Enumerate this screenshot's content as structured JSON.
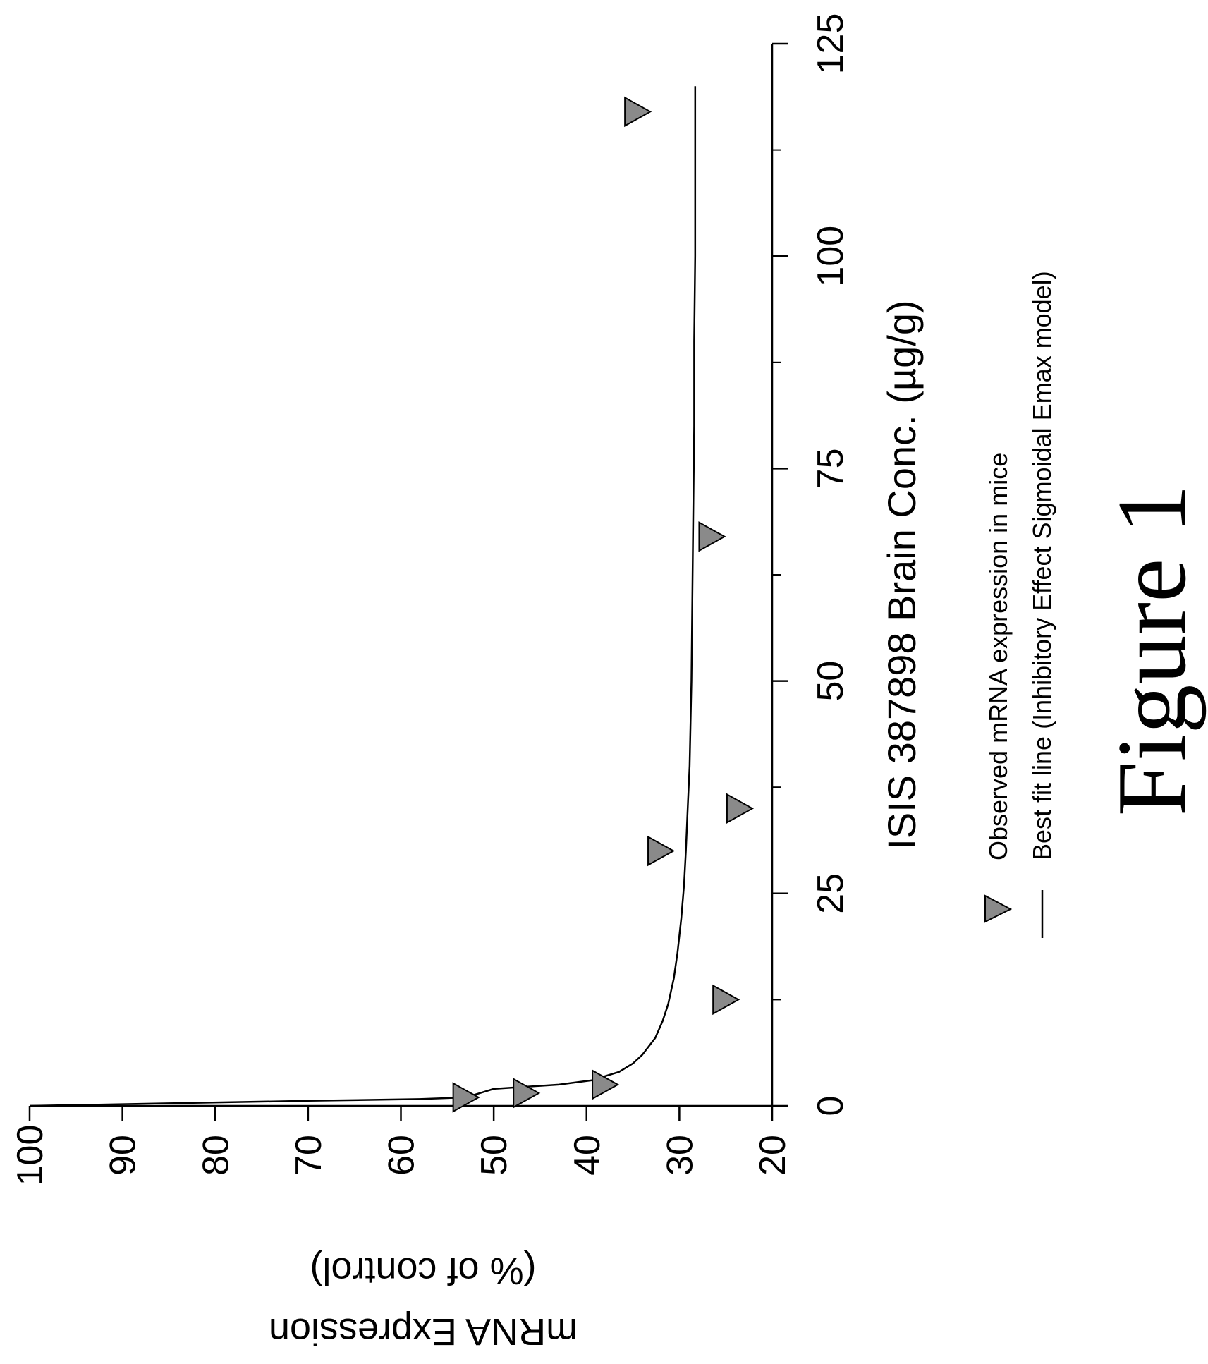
{
  "chart_data": {
    "type": "scatter",
    "orientation": "rotated 90 degrees counter-clockwise",
    "title": "ISIS 387898  Brain Conc. (µg/g)",
    "xlabel": "ISIS 387898  Brain Conc. (µg/g)",
    "ylabel": [
      "mRNA Expression",
      "(% of control)"
    ],
    "xlim": [
      0,
      125
    ],
    "ylim": [
      20,
      100
    ],
    "x_ticks": [
      0,
      25,
      50,
      75,
      100,
      125
    ],
    "x_tick_labels": [
      "0",
      "25",
      "50",
      "75",
      "100",
      "125"
    ],
    "y_ticks": [
      20,
      30,
      40,
      50,
      60,
      70,
      80,
      90,
      100
    ],
    "y_tick_labels": [
      "20",
      "30",
      "40",
      "50",
      "60",
      "70",
      "80",
      "90",
      "100"
    ],
    "grid": false,
    "legend_position": "bottom-right",
    "series": [
      {
        "name": "Observed  mRNA expression in mice",
        "kind": "scatter",
        "marker": "triangle",
        "color": "#8a8a8a",
        "x": [
          1.0,
          1.5,
          2.5,
          12.5,
          30,
          35,
          67,
          117
        ],
        "y": [
          53,
          46.5,
          38,
          25,
          32,
          23.5,
          26.5,
          34.5
        ]
      },
      {
        "name": "Best fit line (Inhibitory Effect Sigmoidal Emax model)",
        "kind": "line",
        "color": "#000000",
        "x": [
          0,
          0.3,
          0.6,
          0.8,
          1.0,
          1.5,
          2.0,
          2.5,
          3,
          4,
          5,
          6,
          8,
          10,
          12,
          15,
          18,
          22,
          26,
          30,
          35,
          40,
          45,
          50,
          60,
          70,
          80,
          90,
          100,
          110,
          120
        ],
        "y": [
          100,
          85,
          70,
          58,
          53,
          51.5,
          50,
          43,
          39.5,
          36.5,
          35,
          34,
          32.6,
          31.8,
          31.2,
          30.6,
          30.2,
          29.8,
          29.5,
          29.3,
          29.1,
          28.9,
          28.8,
          28.7,
          28.6,
          28.5,
          28.4,
          28.4,
          28.3,
          28.3,
          28.3
        ]
      }
    ]
  },
  "caption": "Figure 1"
}
